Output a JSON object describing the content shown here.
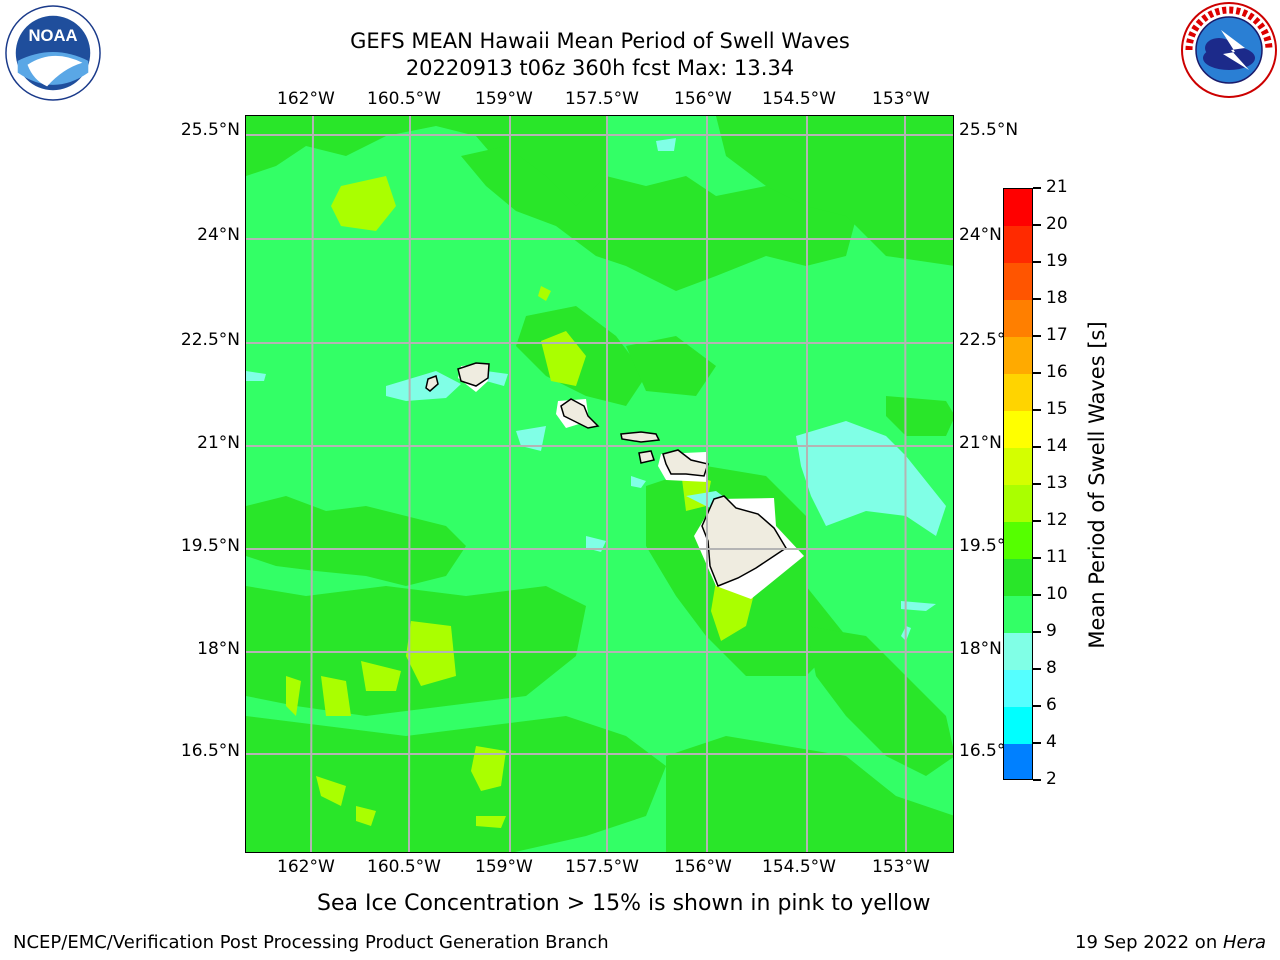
{
  "title": {
    "line1": "GEFS MEAN Hawaii Mean Period of Swell Waves",
    "line2": "20220913 t06z 360h fcst   Max: 13.34"
  },
  "logos": {
    "left": "noaa-logo",
    "right": "nws-logo"
  },
  "axes": {
    "lon_labels": [
      "162°W",
      "160.5°W",
      "159°W",
      "157.5°W",
      "156°W",
      "154.5°W",
      "153°W"
    ],
    "lat_labels": [
      "25.5°N",
      "24°N",
      "22.5°N",
      "21°N",
      "19.5°N",
      "18°N",
      "16.5°N"
    ]
  },
  "colorbar": {
    "label": "Mean Period of Swell Waves [s]",
    "ticks": [
      "21",
      "20",
      "19",
      "18",
      "17",
      "16",
      "15",
      "14",
      "13",
      "12",
      "11",
      "10",
      "9",
      "8",
      "6",
      "4",
      "2"
    ],
    "colors": [
      "#ff0000",
      "#ff2a00",
      "#ff5500",
      "#ff7f00",
      "#ffaa00",
      "#ffd400",
      "#ffff00",
      "#d4ff00",
      "#aaff00",
      "#55ff00",
      "#29e629",
      "#33ff66",
      "#80ffe6",
      "#55ffff",
      "#00ffff",
      "#0080ff",
      "#0000ff"
    ]
  },
  "map": {
    "background_color": "#33ff66",
    "islands": [
      "Niihau",
      "Kauai",
      "Oahu",
      "Molokai",
      "Lanai",
      "Maui",
      "Hawaii"
    ]
  },
  "note": "Sea Ice Concentration > 15% is shown in pink to yellow",
  "footer": {
    "left": "NCEP/EMC/Verification Post Processing Product Generation Branch",
    "right_prefix": "19 Sep 2022 on ",
    "right_host": "Hera"
  }
}
